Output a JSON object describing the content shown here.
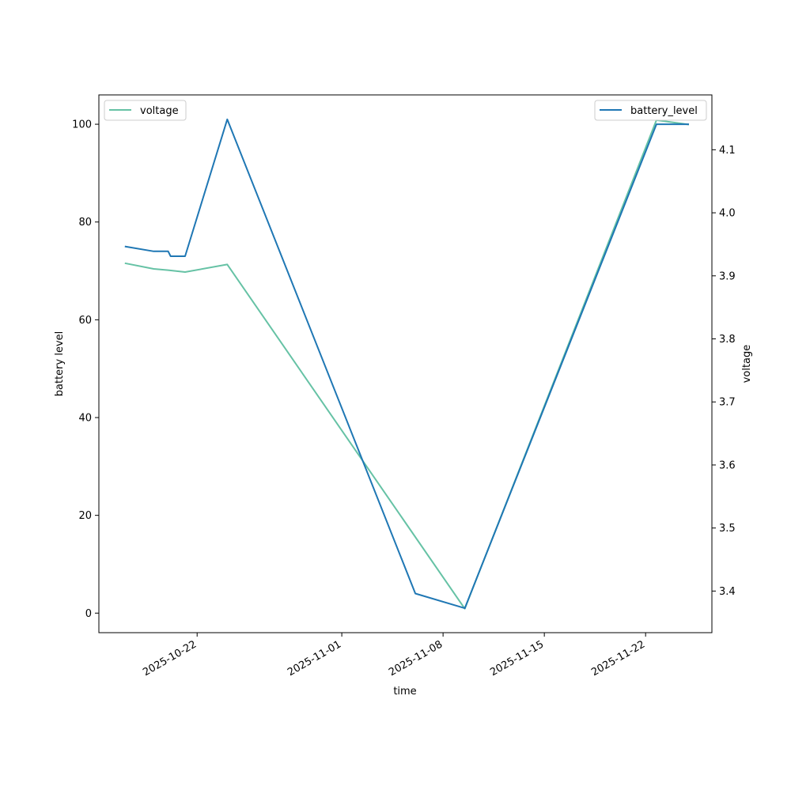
{
  "chart_data": {
    "type": "line",
    "xlabel": "time",
    "ylabel_left": "battery level",
    "ylabel_right": "voltage",
    "x_ticks": [
      "2025-10-22",
      "2025-11-01",
      "2025-11-08",
      "2025-11-15",
      "2025-11-22"
    ],
    "y_left_ticks": [
      0,
      20,
      40,
      60,
      80,
      100
    ],
    "y_right_ticks": [
      3.4,
      3.5,
      3.6,
      3.7,
      3.8,
      3.9,
      4.0,
      4.1
    ],
    "xlim": [
      "2025-10-15T05:00",
      "2025-11-26T14:00"
    ],
    "ylim_left": [
      -4.0,
      106.0
    ],
    "ylim_right": [
      3.334,
      4.187
    ],
    "legend_left_position": "upper left",
    "legend_right_position": "upper right",
    "series": [
      {
        "name": "battery_level",
        "axis": "left",
        "color": "#1f77b4",
        "points": [
          {
            "x": "2025-10-17T00:00",
            "y": 75
          },
          {
            "x": "2025-10-19T00:00",
            "y": 74
          },
          {
            "x": "2025-10-20T00:00",
            "y": 74
          },
          {
            "x": "2025-10-20T04:00",
            "y": 73
          },
          {
            "x": "2025-10-21T04:00",
            "y": 73
          },
          {
            "x": "2025-10-24T02:00",
            "y": 101
          },
          {
            "x": "2025-11-06T02:00",
            "y": 4
          },
          {
            "x": "2025-11-09T12:00",
            "y": 1
          },
          {
            "x": "2025-11-22T18:00",
            "y": 100
          },
          {
            "x": "2025-11-25T00:00",
            "y": 100
          }
        ]
      },
      {
        "name": "voltage",
        "axis": "right",
        "color": "#66c2a5",
        "points": [
          {
            "x": "2025-10-17T00:00",
            "y": 3.92
          },
          {
            "x": "2025-10-19T00:00",
            "y": 3.911
          },
          {
            "x": "2025-10-20T00:00",
            "y": 3.909
          },
          {
            "x": "2025-10-21T04:00",
            "y": 3.906
          },
          {
            "x": "2025-10-24T02:00",
            "y": 3.918
          },
          {
            "x": "2025-11-09T12:00",
            "y": 3.372
          },
          {
            "x": "2025-11-22T18:00",
            "y": 4.147
          },
          {
            "x": "2025-11-25T00:00",
            "y": 4.14
          }
        ]
      }
    ]
  }
}
